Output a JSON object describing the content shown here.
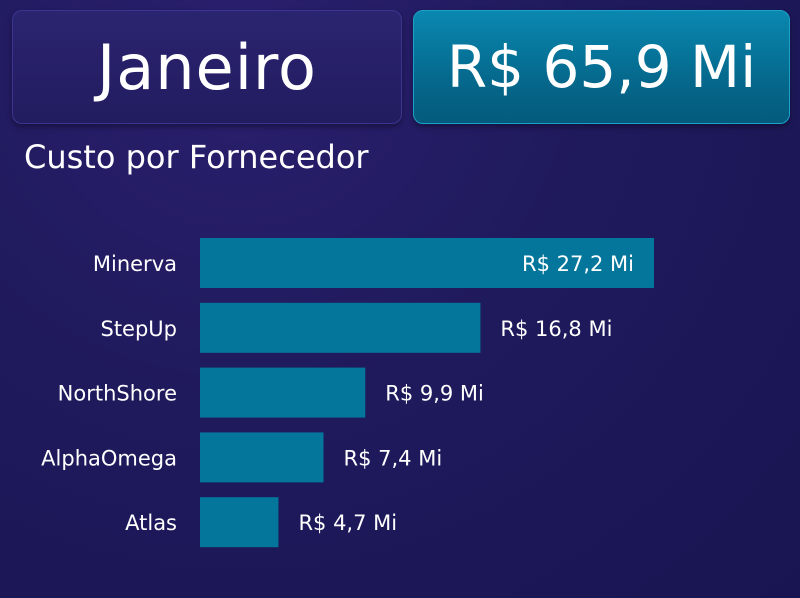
{
  "header": {
    "month": "Janeiro",
    "total": "R$ 65,9 Mi"
  },
  "chart_data": {
    "type": "bar",
    "orientation": "horizontal",
    "title": "Custo por Fornecedor",
    "categories": [
      "Minerva",
      "StepUp",
      "NorthShore",
      "AlphaOmega",
      "Atlas"
    ],
    "values": [
      27.2,
      16.8,
      9.9,
      7.4,
      4.7
    ],
    "value_labels": [
      "R$ 27,2 Mi",
      "R$ 16,8 Mi",
      "R$ 9,9 Mi",
      "R$ 7,4 Mi",
      "R$ 4,7 Mi"
    ],
    "unit": "R$ Mi",
    "xlim": [
      0,
      27.2
    ],
    "grid": false,
    "legend": "none",
    "bar_color": "#04769c"
  }
}
